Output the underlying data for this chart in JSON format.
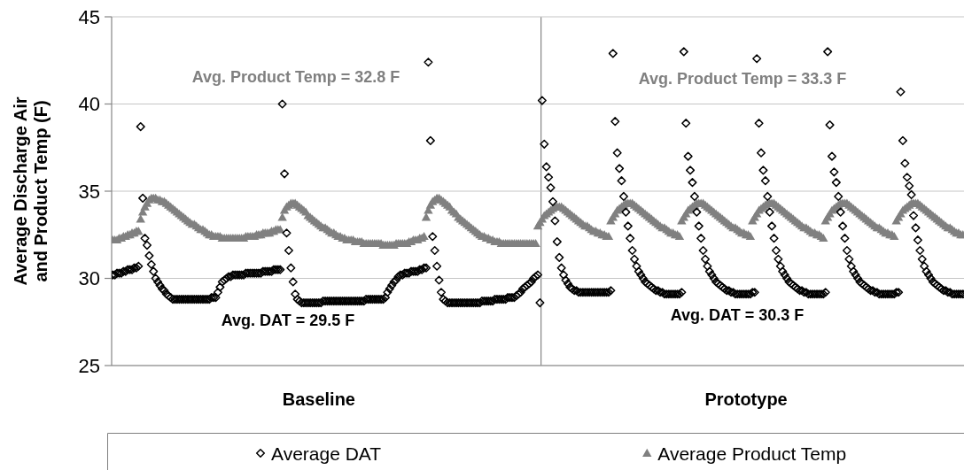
{
  "chart_data": {
    "type": "scatter",
    "ylabel": "Average Discharge Air and Product Temp (F)",
    "categories": [
      null,
      null,
      null,
      null,
      null,
      null,
      null,
      null,
      null,
      null,
      null,
      null,
      null,
      null,
      null,
      null,
      null,
      null,
      null,
      null,
      null,
      null,
      null,
      null,
      null,
      null,
      null,
      null,
      null,
      null,
      null,
      null,
      null,
      null,
      null,
      null,
      null,
      null,
      null,
      null,
      null,
      null,
      null,
      null,
      null,
      null,
      null,
      null,
      null,
      null,
      null,
      null,
      null,
      null,
      null,
      null,
      null,
      null,
      null,
      null,
      null,
      null,
      null,
      null,
      null,
      null,
      null,
      null,
      null,
      null,
      null,
      null,
      null,
      null,
      null,
      null,
      null,
      null,
      null,
      null,
      null,
      null,
      null,
      null,
      null,
      null,
      null,
      null,
      null,
      null,
      null,
      null,
      null,
      null,
      null,
      null,
      "Baseline",
      null,
      null,
      null,
      null,
      null,
      null,
      null,
      null,
      null,
      null,
      null,
      null,
      null,
      null,
      null,
      null,
      null,
      null,
      null,
      null,
      null,
      null,
      null,
      null,
      null,
      null,
      null,
      null,
      null,
      null,
      null,
      null,
      null,
      null,
      null,
      null,
      null,
      null,
      null,
      null,
      null,
      null,
      null,
      null,
      null,
      null,
      null,
      null,
      null,
      null,
      null,
      null,
      null,
      null,
      null,
      null,
      null,
      null,
      null,
      null,
      null,
      null,
      null,
      null,
      null,
      null,
      null,
      null,
      null,
      null,
      null,
      null,
      null,
      null,
      null,
      null,
      null,
      null,
      null,
      null,
      null,
      null,
      null,
      null,
      null,
      null,
      null,
      null,
      null,
      null,
      null,
      null,
      null,
      null,
      null,
      null,
      null,
      null,
      null,
      null,
      null,
      null,
      null,
      null,
      null,
      null,
      null,
      null,
      null,
      null,
      null,
      null,
      null,
      null,
      null,
      null,
      null,
      null,
      null,
      null,
      null,
      null,
      null,
      null,
      null,
      null,
      null,
      null,
      null,
      null,
      null,
      null,
      null,
      null,
      null,
      null,
      null,
      null,
      null,
      null,
      null,
      null,
      null,
      null,
      null,
      null,
      null,
      null,
      null,
      null,
      null,
      null,
      null,
      null,
      null,
      null,
      null,
      null,
      null,
      null,
      null,
      null,
      null,
      null,
      null,
      null,
      null,
      null,
      null,
      null,
      null,
      null,
      null,
      null,
      null,
      null,
      null,
      null,
      null,
      null,
      null,
      null,
      null,
      null,
      null,
      null,
      null,
      null,
      null,
      null,
      null,
      null,
      null,
      null,
      null,
      null,
      null,
      null,
      "Prototype",
      null,
      null,
      null,
      null,
      null,
      null,
      null,
      null,
      null,
      null,
      null,
      null,
      null,
      null,
      null,
      null,
      null,
      null,
      null,
      null,
      null,
      null,
      null,
      null,
      null,
      null,
      null,
      null,
      null,
      null,
      null,
      null,
      null,
      null,
      null,
      null,
      null,
      null,
      null,
      null,
      null,
      null,
      null,
      null,
      null,
      null,
      null,
      null,
      null,
      null,
      null,
      null,
      null,
      null,
      null,
      null,
      null,
      null,
      null,
      null,
      null,
      null,
      null,
      null,
      null,
      null,
      null,
      null,
      null,
      null,
      null,
      null,
      null,
      null,
      null,
      null,
      null,
      null,
      null,
      null,
      null,
      null,
      null,
      null,
      null,
      null,
      null,
      null,
      null,
      null,
      null,
      null,
      null,
      null,
      null,
      null,
      null,
      null,
      null,
      null,
      null
    ],
    "ylim": [
      25,
      45
    ],
    "yticks": [
      25,
      30,
      35,
      40,
      45
    ],
    "grid": "y",
    "legend": "bottom",
    "annotations": [
      "Avg. Product Temp = 32.8 F",
      "Avg. Product Temp = 33.3 F",
      "Avg. DAT = 29.5 F",
      "Avg. DAT = 30.3 F"
    ],
    "series": [
      {
        "name": "Average DAT",
        "color": "#000000",
        "marker": "diamond",
        "values": [
          30.2,
          30.2,
          30.3,
          30.3,
          30.3,
          30.4,
          30.4,
          30.5,
          30.5,
          30.5,
          30.6,
          30.6,
          30.7,
          38.7,
          34.6,
          32.3,
          31.9,
          31.3,
          30.8,
          30.4,
          30.0,
          29.8,
          29.6,
          29.4,
          29.3,
          29.1,
          29.0,
          28.9,
          28.8,
          28.8,
          28.8,
          28.8,
          28.8,
          28.8,
          28.8,
          28.8,
          28.8,
          28.8,
          28.8,
          28.8,
          28.8,
          28.8,
          28.8,
          28.8,
          28.8,
          28.8,
          28.9,
          28.9,
          28.9,
          29.2,
          29.5,
          29.8,
          29.9,
          30.0,
          30.1,
          30.1,
          30.2,
          30.2,
          30.2,
          30.2,
          30.2,
          30.2,
          30.3,
          30.3,
          30.3,
          30.3,
          30.3,
          30.3,
          30.3,
          30.3,
          30.4,
          30.4,
          30.4,
          30.4,
          30.4,
          30.5,
          30.5,
          30.5,
          30.5,
          40.0,
          36.0,
          32.6,
          31.6,
          30.6,
          29.8,
          29.1,
          28.8,
          28.7,
          28.6,
          28.6,
          28.6,
          28.6,
          28.6,
          28.6,
          28.6,
          28.6,
          28.6,
          28.6,
          28.7,
          28.7,
          28.7,
          28.7,
          28.7,
          28.7,
          28.7,
          28.7,
          28.7,
          28.7,
          28.7,
          28.7,
          28.7,
          28.7,
          28.7,
          28.7,
          28.7,
          28.7,
          28.7,
          28.7,
          28.8,
          28.8,
          28.8,
          28.8,
          28.8,
          28.8,
          28.8,
          28.8,
          28.8,
          28.9,
          29.2,
          29.4,
          29.6,
          29.8,
          29.9,
          30.1,
          30.2,
          30.2,
          30.3,
          30.3,
          30.3,
          30.4,
          30.4,
          30.4,
          30.4,
          30.5,
          30.5,
          30.6,
          30.6,
          42.4,
          37.9,
          32.4,
          31.6,
          30.7,
          29.9,
          29.2,
          28.8,
          28.7,
          28.6,
          28.6,
          28.6,
          28.6,
          28.6,
          28.6,
          28.6,
          28.6,
          28.6,
          28.6,
          28.6,
          28.6,
          28.6,
          28.6,
          28.6,
          28.6,
          28.7,
          28.7,
          28.7,
          28.7,
          28.7,
          28.7,
          28.8,
          28.8,
          28.8,
          28.8,
          28.8,
          28.8,
          28.9,
          28.9,
          28.9,
          28.9,
          29.0,
          29.1,
          29.2,
          29.4,
          29.5,
          29.6,
          29.7,
          29.8,
          30.0,
          30.1,
          30.2,
          28.6,
          40.2,
          37.7,
          36.4,
          35.8,
          35.2,
          34.4,
          33.3,
          32.1,
          31.2,
          30.6,
          30.2,
          29.9,
          29.7,
          29.5,
          29.4,
          29.3,
          29.3,
          29.2,
          29.2,
          29.2,
          29.2,
          29.2,
          29.2,
          29.2,
          29.2,
          29.2,
          29.2,
          29.2,
          29.2,
          29.2,
          29.2,
          29.2,
          29.3,
          42.9,
          39.0,
          37.2,
          36.3,
          35.6,
          34.7,
          33.8,
          33.0,
          32.3,
          31.6,
          31.1,
          30.7,
          30.4,
          30.2,
          30.0,
          29.8,
          29.7,
          29.6,
          29.5,
          29.4,
          29.3,
          29.3,
          29.2,
          29.2,
          29.1,
          29.1,
          29.1,
          29.1,
          29.1,
          29.1,
          29.1,
          29.1,
          29.2,
          43.0,
          38.9,
          37.0,
          36.2,
          35.5,
          34.7,
          33.8,
          33.0,
          32.3,
          31.6,
          31.1,
          30.7,
          30.4,
          30.2,
          30.0,
          29.8,
          29.7,
          29.6,
          29.5,
          29.4,
          29.3,
          29.3,
          29.2,
          29.2,
          29.1,
          29.1,
          29.1,
          29.1,
          29.1,
          29.1,
          29.1,
          29.1,
          29.2,
          29.2,
          42.6,
          38.9,
          37.2,
          36.2,
          35.6,
          34.7,
          33.8,
          33.0,
          32.3,
          31.6,
          31.1,
          30.7,
          30.4,
          30.2,
          30.0,
          29.8,
          29.7,
          29.6,
          29.5,
          29.4,
          29.3,
          29.3,
          29.2,
          29.2,
          29.1,
          29.1,
          29.1,
          29.1,
          29.1,
          29.1,
          29.1,
          29.1,
          29.2,
          43.0,
          38.8,
          37.0,
          36.1,
          35.5,
          34.7,
          33.8,
          33.0,
          32.3,
          31.6,
          31.1,
          30.7,
          30.4,
          30.2,
          30.0,
          29.8,
          29.7,
          29.6,
          29.5,
          29.4,
          29.3,
          29.3,
          29.2,
          29.2,
          29.1,
          29.1,
          29.1,
          29.1,
          29.1,
          29.1,
          29.1,
          29.1,
          29.2,
          29.2,
          40.7,
          37.9,
          36.6,
          35.8,
          35.3,
          34.8,
          33.6,
          32.9,
          32.2,
          31.6,
          31.1,
          30.7,
          30.4,
          30.2,
          30.0,
          29.8,
          29.7,
          29.6,
          29.5,
          29.4,
          29.3,
          29.3,
          29.2,
          29.2,
          29.1,
          29.1,
          29.1,
          29.1,
          29.1,
          29.1
        ]
      },
      {
        "name": "Average Product Temp",
        "color": "#808080",
        "marker": "triangle",
        "values": [
          32.2,
          32.2,
          32.2,
          32.3,
          32.3,
          32.4,
          32.4,
          32.5,
          32.5,
          32.6,
          32.6,
          32.7,
          32.7,
          33.4,
          33.8,
          34.1,
          34.3,
          34.5,
          34.6,
          34.6,
          34.6,
          34.5,
          34.5,
          34.4,
          34.4,
          34.3,
          34.2,
          34.1,
          34.0,
          33.9,
          33.8,
          33.7,
          33.6,
          33.5,
          33.4,
          33.3,
          33.2,
          33.1,
          33.1,
          33.0,
          32.9,
          32.8,
          32.8,
          32.7,
          32.6,
          32.5,
          32.5,
          32.4,
          32.4,
          32.4,
          32.4,
          32.3,
          32.3,
          32.3,
          32.3,
          32.3,
          32.3,
          32.3,
          32.3,
          32.3,
          32.3,
          32.3,
          32.4,
          32.4,
          32.4,
          32.4,
          32.4,
          32.5,
          32.5,
          32.5,
          32.6,
          32.6,
          32.6,
          32.6,
          32.7,
          32.7,
          32.8,
          32.8,
          32.8,
          33.5,
          33.9,
          34.1,
          34.2,
          34.3,
          34.3,
          34.3,
          34.2,
          34.1,
          34.0,
          33.9,
          33.8,
          33.6,
          33.5,
          33.4,
          33.3,
          33.2,
          33.1,
          33.0,
          32.9,
          32.9,
          32.8,
          32.7,
          32.6,
          32.6,
          32.5,
          32.4,
          32.4,
          32.3,
          32.3,
          32.2,
          32.2,
          32.2,
          32.2,
          32.1,
          32.1,
          32.1,
          32.1,
          32.0,
          32.0,
          32.0,
          32.0,
          32.0,
          32.0,
          32.0,
          32.0,
          32.0,
          31.9,
          31.9,
          31.9,
          31.9,
          31.9,
          31.9,
          32.0,
          32.0,
          32.0,
          32.0,
          32.0,
          32.0,
          32.1,
          32.1,
          32.2,
          32.2,
          32.2,
          32.3,
          32.3,
          32.4,
          33.5,
          33.9,
          34.2,
          34.4,
          34.5,
          34.6,
          34.6,
          34.5,
          34.4,
          34.3,
          34.2,
          34.1,
          33.9,
          33.8,
          33.7,
          33.5,
          33.4,
          33.3,
          33.2,
          33.1,
          33.0,
          32.9,
          32.8,
          32.7,
          32.6,
          32.5,
          32.4,
          32.4,
          32.3,
          32.3,
          32.2,
          32.2,
          32.1,
          32.1,
          32.1,
          32.0,
          32.0,
          32.0,
          32.0,
          32.0,
          32.0,
          32.0,
          32.0,
          32.0,
          32.0,
          32.0,
          32.0,
          32.0,
          32.0,
          32.0,
          32.0,
          32.0,
          33.0,
          33.2,
          33.4,
          33.6,
          33.7,
          33.8,
          33.9,
          34.0,
          34.1,
          34.1,
          34.1,
          34.1,
          34.0,
          33.9,
          33.8,
          33.7,
          33.6,
          33.5,
          33.4,
          33.3,
          33.2,
          33.1,
          33.0,
          33.0,
          32.9,
          32.8,
          32.7,
          32.7,
          32.6,
          32.6,
          32.5,
          32.5,
          32.4,
          32.4,
          33.3,
          33.5,
          33.7,
          33.9,
          34.0,
          34.1,
          34.2,
          34.3,
          34.3,
          34.3,
          34.3,
          34.2,
          34.1,
          34.0,
          33.9,
          33.8,
          33.7,
          33.6,
          33.5,
          33.4,
          33.3,
          33.2,
          33.1,
          33.0,
          32.9,
          32.9,
          32.8,
          32.7,
          32.6,
          32.6,
          32.5,
          32.5,
          32.4,
          33.3,
          33.5,
          33.7,
          33.9,
          34.0,
          34.1,
          34.2,
          34.3,
          34.3,
          34.3,
          34.3,
          34.2,
          34.1,
          34.0,
          33.9,
          33.8,
          33.7,
          33.6,
          33.5,
          33.4,
          33.3,
          33.2,
          33.1,
          33.0,
          32.9,
          32.9,
          32.8,
          32.7,
          32.6,
          32.6,
          32.5,
          32.5,
          32.4,
          33.3,
          33.5,
          33.7,
          33.9,
          34.0,
          34.1,
          34.2,
          34.3,
          34.3,
          34.3,
          34.3,
          34.2,
          34.1,
          34.0,
          33.9,
          33.8,
          33.7,
          33.6,
          33.5,
          33.4,
          33.3,
          33.2,
          33.1,
          33.0,
          32.9,
          32.9,
          32.8,
          32.7,
          32.6,
          32.6,
          32.5,
          32.5,
          32.4,
          32.3,
          33.3,
          33.5,
          33.7,
          33.9,
          34.0,
          34.1,
          34.2,
          34.3,
          34.3,
          34.3,
          34.3,
          34.2,
          34.1,
          34.0,
          33.9,
          33.8,
          33.7,
          33.6,
          33.5,
          33.4,
          33.3,
          33.2,
          33.1,
          33.0,
          32.9,
          32.9,
          32.8,
          32.7,
          32.6,
          32.6,
          32.5,
          32.5,
          32.4,
          33.3,
          33.5,
          33.7,
          33.9,
          34.0,
          34.1,
          34.2,
          34.3,
          34.3,
          34.3,
          34.3,
          34.2,
          34.1,
          34.0,
          33.9,
          33.8,
          33.7,
          33.6,
          33.5,
          33.4,
          33.3,
          33.2,
          33.1,
          33.0,
          32.9,
          32.9,
          32.8,
          32.7,
          32.6,
          32.6,
          32.5,
          32.5
        ]
      }
    ]
  }
}
